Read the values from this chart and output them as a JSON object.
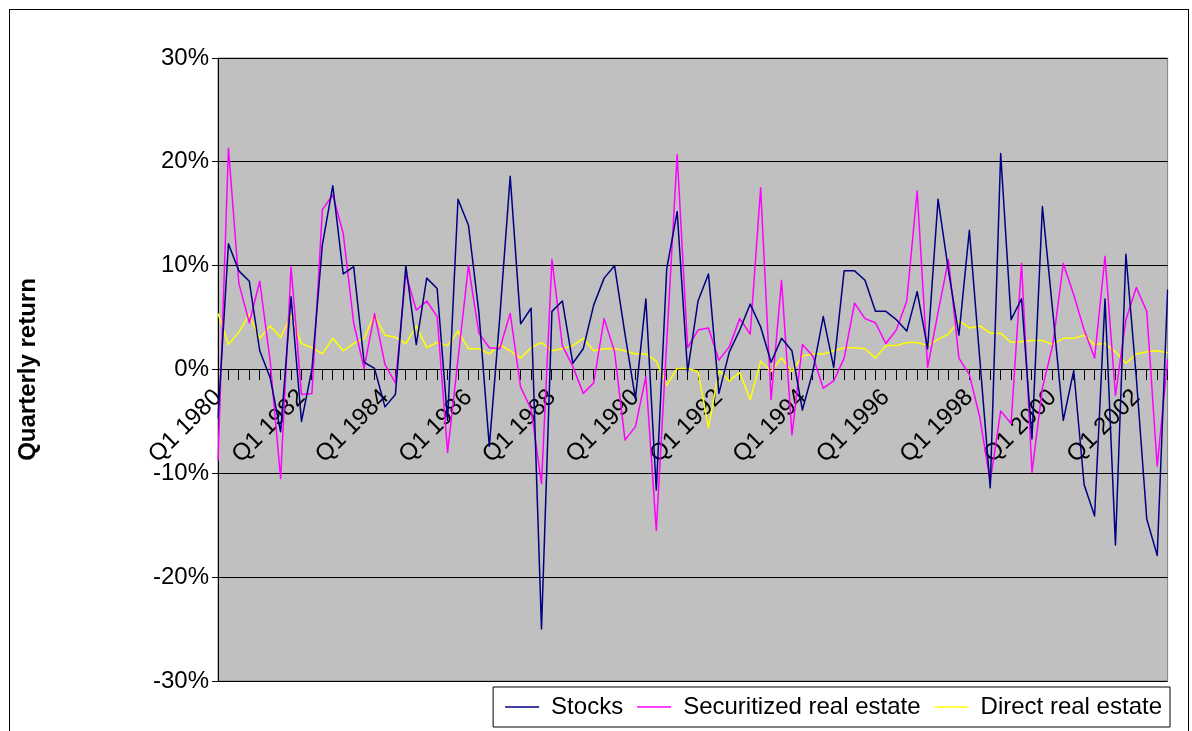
{
  "chart_data": {
    "type": "line",
    "ylabel": "Quarterly return",
    "categories": [
      "Q1 1980",
      null,
      null,
      null,
      null,
      null,
      null,
      null,
      "Q1 1982",
      null,
      null,
      null,
      null,
      null,
      null,
      null,
      "Q1 1984",
      null,
      null,
      null,
      null,
      null,
      null,
      null,
      "Q1 1986",
      null,
      null,
      null,
      null,
      null,
      null,
      null,
      "Q1 1988",
      null,
      null,
      null,
      null,
      null,
      null,
      null,
      "Q1 1990",
      null,
      null,
      null,
      null,
      null,
      null,
      null,
      "Q1 1992",
      null,
      null,
      null,
      null,
      null,
      null,
      null,
      "Q1 1994",
      null,
      null,
      null,
      null,
      null,
      null,
      null,
      "Q1 1996",
      null,
      null,
      null,
      null,
      null,
      null,
      null,
      "Q1 1998",
      null,
      null,
      null,
      null,
      null,
      null,
      null,
      "Q1 2000",
      null,
      null,
      null,
      null,
      null,
      null,
      null,
      "Q1 2002",
      null,
      null,
      null
    ],
    "series": [
      {
        "name": "Stocks",
        "color": "#000080",
        "values": [
          -4.7,
          12.1,
          9.5,
          8.5,
          1.8,
          -0.8,
          -6,
          7.0,
          -5.0,
          0,
          12,
          17.7,
          9.2,
          9.9,
          0.7,
          0.1,
          -3.6,
          -2.4,
          10.0,
          2.4,
          8.8,
          7.8,
          -4.9,
          16.4,
          13.9,
          5.5,
          -7.4,
          5.0,
          18.6,
          4.4,
          5.9,
          -25.0,
          5.6,
          6.6,
          0.6,
          2.0,
          6.2,
          8.8,
          10.0,
          3.4,
          -2.8,
          6.8,
          -11.6,
          9.7,
          15.2,
          -0.2,
          6.6,
          9.2,
          -2.3,
          1.7,
          3.8,
          6.3,
          4.1,
          0.7,
          3.0,
          1.8,
          -3.9,
          -0.2,
          5.1,
          0.2,
          9.5,
          9.5,
          8.6,
          5.6,
          5.6,
          4.8,
          3.7,
          7.5,
          2.0,
          16.4,
          9.5,
          3.3,
          13.4,
          1.0,
          -11.4,
          20.8,
          4.8,
          6.8,
          -6.7,
          15.7,
          5.5,
          -4.9,
          -0.1,
          -11.1,
          -14.1,
          6.8,
          -16.9,
          11.1,
          -0.8,
          -14.4,
          -17.9,
          7.7
        ]
      },
      {
        "name": "Securitized real estate",
        "color": "#ff00ff",
        "values": [
          -8.8,
          21.3,
          8.3,
          4.5,
          8.5,
          0.8,
          -10.5,
          9.9,
          -2.4,
          -2.3,
          15.4,
          16.8,
          13.1,
          4.5,
          0.1,
          5.4,
          0.5,
          -1.3,
          9.2,
          5.7,
          6.6,
          5.1,
          -8.0,
          1.0,
          10.0,
          3.5,
          2.1,
          2.0,
          5.4,
          -1.7,
          -3.8,
          -11.0,
          10.6,
          2.3,
          0.3,
          -2.3,
          -1.3,
          4.9,
          1.7,
          -6.8,
          -5.5,
          -0.7,
          -15.5,
          2.7,
          20.7,
          2.1,
          3.8,
          4.0,
          0.9,
          2.2,
          4.9,
          3.4,
          17.5,
          -2.9,
          8.6,
          -6.3,
          2.4,
          1.3,
          -1.8,
          -1.1,
          1.1,
          6.4,
          4.9,
          4.5,
          2.5,
          3.8,
          6.6,
          17.2,
          0.2,
          5.5,
          10.6,
          1.1,
          -0.5,
          -4.6,
          -10.8,
          -4.0,
          -5.2,
          10.2,
          -9.9,
          -1.8,
          2.4,
          10.2,
          7.2,
          3.8,
          1.1,
          10.9,
          -2.5,
          4.8,
          7.9,
          5.6,
          -9.3,
          1.0
        ]
      },
      {
        "name": "Direct real estate",
        "color": "#ffff00",
        "values": [
          5.4,
          2.4,
          3.6,
          5.3,
          3.0,
          4.2,
          3.1,
          5.2,
          2.5,
          2.1,
          1.5,
          3.0,
          1.8,
          2.5,
          3.0,
          5.3,
          3.3,
          3.1,
          2.5,
          4.2,
          2.1,
          2.6,
          2.3,
          3.7,
          2.0,
          2.0,
          1.5,
          2.4,
          1.8,
          1.1,
          2.1,
          2.6,
          1.8,
          2.0,
          2.3,
          3.0,
          1.8,
          2.0,
          2.0,
          1.8,
          1.5,
          1.5,
          0.8,
          -1.5,
          0.1,
          0.1,
          -0.2,
          -5.6,
          -0.1,
          -1.1,
          -0.3,
          -2.9,
          0.8,
          -0.2,
          1.1,
          -0.2,
          1.3,
          1.5,
          1.5,
          1.8,
          2.1,
          2.1,
          2.0,
          1.1,
          2.3,
          2.3,
          2.6,
          2.6,
          2.3,
          2.9,
          3.4,
          4.7,
          4.0,
          4.2,
          3.5,
          3.5,
          2.6,
          2.7,
          2.8,
          2.8,
          2.4,
          3.0,
          3.0,
          3.3,
          2.4,
          2.5,
          1.7,
          0.6,
          1.5,
          1.7,
          1.8,
          1.6
        ]
      }
    ],
    "ylim": [
      -30,
      30
    ],
    "yticks": [
      {
        "value": -30,
        "label": "-30%"
      },
      {
        "value": -20,
        "label": "-20%"
      },
      {
        "value": -10,
        "label": "-10%"
      },
      {
        "value": 0,
        "label": "0%"
      },
      {
        "value": 10,
        "label": "10%"
      },
      {
        "value": 20,
        "label": "20%"
      },
      {
        "value": 30,
        "label": "30%"
      }
    ],
    "grid": "y",
    "legend": "bottom"
  }
}
